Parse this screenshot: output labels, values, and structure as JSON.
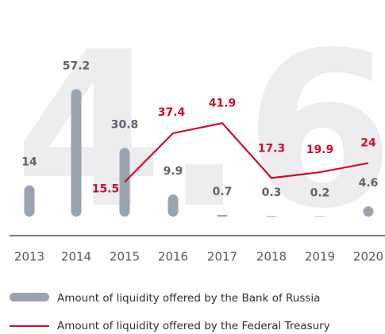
{
  "chart_data": {
    "type": "bar+line",
    "background_label": "4.6",
    "categories": [
      "2013",
      "2014",
      "2015",
      "2016",
      "2017",
      "2018",
      "2019",
      "2020"
    ],
    "series": [
      {
        "name": "Amount of liquidity offered by the Bank of Russia",
        "type": "bar",
        "color": "#9aa3b0",
        "values": [
          14,
          57.2,
          30.8,
          9.9,
          0.7,
          0.3,
          0.2,
          4.6
        ]
      },
      {
        "name": "Amount of liquidity offered by the Federal Treasury",
        "type": "line",
        "color": "#c8102e",
        "values": [
          null,
          null,
          15.5,
          37.4,
          41.9,
          17.3,
          19.9,
          24
        ]
      }
    ],
    "ylim": [
      0,
      60
    ]
  }
}
